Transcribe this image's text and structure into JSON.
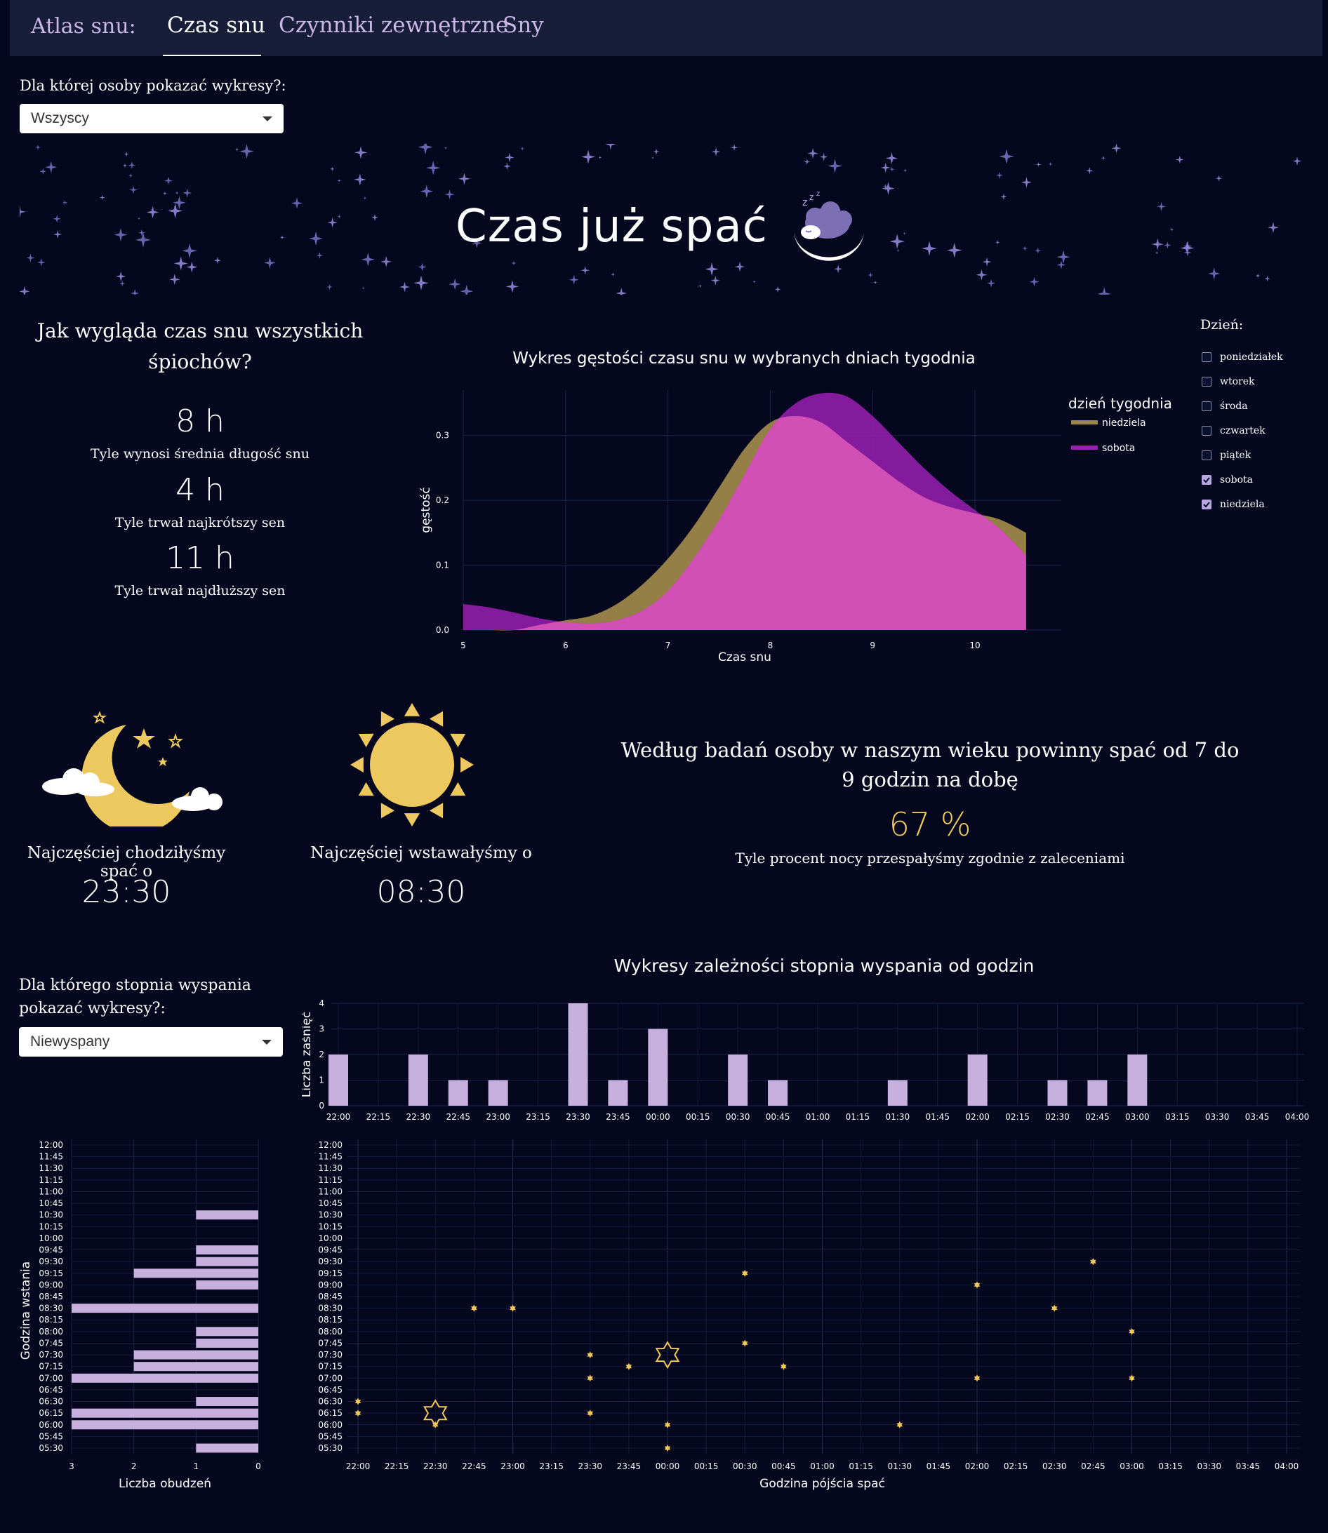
{
  "nav": {
    "brand": "Atlas snu:",
    "tabs": [
      {
        "label": "Czas snu",
        "active": true
      },
      {
        "label": "Czynniki zewnętrzne",
        "active": false
      },
      {
        "label": "Sny",
        "active": false
      }
    ]
  },
  "person_selector": {
    "label": "Dla której osoby pokazać wykresy?:",
    "value": "Wszyscy"
  },
  "banner": {
    "title": "Czas już spać",
    "icon": "sleeping-sheep-on-moon-icon"
  },
  "stats": {
    "heading": "Jak wygląda czas snu wszystkich śpiochów?",
    "avg_value": "8 h",
    "avg_caption": "Tyle wynosi średnia długość snu",
    "min_value": "4 h",
    "min_caption": "Tyle trwał najkrótszy sen",
    "max_value": "11 h",
    "max_caption": "Tyle trwał najdłuższy sen"
  },
  "day_filter": {
    "label": "Dzień:",
    "options": [
      {
        "label": "poniedziałek",
        "checked": false
      },
      {
        "label": "wtorek",
        "checked": false
      },
      {
        "label": "środa",
        "checked": false
      },
      {
        "label": "czwartek",
        "checked": false
      },
      {
        "label": "piątek",
        "checked": false
      },
      {
        "label": "sobota",
        "checked": true
      },
      {
        "label": "niedziela",
        "checked": true
      }
    ]
  },
  "bed_time": {
    "caption": "Najczęściej chodziłyśmy spać o",
    "value": "23:30",
    "icon": "moon-with-clouds-icon"
  },
  "wake_time": {
    "caption": "Najczęściej wstawałyśmy o",
    "value": "08:30",
    "icon": "sun-icon"
  },
  "recommendation": {
    "text": "Według badań osoby w naszym wieku powinny spać od 7 do 9 godzin na dobę",
    "percent": "67 %",
    "caption": "Tyle procent nocy przespałyśmy zgodnie z zaleceniami"
  },
  "rested_selector": {
    "label": "Dla którego stopnia wyspania pokazać wykresy?:",
    "value": "Niewyspany"
  },
  "colors": {
    "background": "#04071e",
    "nav": "#181d3a",
    "accent": "#c9b7e6",
    "niedziela": "#9c8749",
    "sobota": "#9b1fb3",
    "overlap": "#d24fb6",
    "bar": "#c7b0de",
    "marker": "#f2c85b"
  },
  "chart_data": [
    {
      "type": "area",
      "title": "Wykres gęstości czasu snu w wybranych dniach tygodnia",
      "xlabel": "Czas snu",
      "ylabel": "gęstość",
      "xlim": [
        5,
        10.5
      ],
      "ylim": [
        0,
        0.37
      ],
      "xticks": [
        "5",
        "6",
        "7",
        "8",
        "9",
        "10"
      ],
      "yticks": [
        "0.0",
        "0.1",
        "0.2",
        "0.3"
      ],
      "legend_title": "dzień tygodnia",
      "legend_position": "top-right",
      "x": [
        5,
        5.25,
        5.5,
        5.75,
        6,
        6.25,
        6.5,
        6.75,
        7,
        7.25,
        7.5,
        7.75,
        8,
        8.25,
        8.5,
        8.75,
        9,
        9.25,
        9.5,
        9.75,
        10,
        10.25,
        10.5
      ],
      "series": [
        {
          "name": "niedziela",
          "values": [
            0.0,
            0.0,
            0.0,
            0.008,
            0.015,
            0.022,
            0.04,
            0.07,
            0.11,
            0.16,
            0.22,
            0.28,
            0.32,
            0.33,
            0.32,
            0.29,
            0.26,
            0.23,
            0.205,
            0.19,
            0.18,
            0.17,
            0.15
          ]
        },
        {
          "name": "sobota",
          "values": [
            0.04,
            0.035,
            0.027,
            0.018,
            0.012,
            0.01,
            0.015,
            0.03,
            0.06,
            0.11,
            0.17,
            0.24,
            0.31,
            0.35,
            0.365,
            0.36,
            0.33,
            0.29,
            0.25,
            0.215,
            0.185,
            0.155,
            0.115
          ]
        }
      ]
    },
    {
      "type": "bar",
      "title": "Wykresy zależności stopnia wyspania od godzin",
      "ylabel": "Liczba zaśnięć",
      "ylim": [
        0,
        4
      ],
      "categories": [
        "22:00",
        "22:15",
        "22:30",
        "22:45",
        "23:00",
        "23:15",
        "23:30",
        "23:45",
        "00:00",
        "00:15",
        "00:30",
        "00:45",
        "01:00",
        "01:15",
        "01:30",
        "01:45",
        "02:00",
        "02:15",
        "02:30",
        "02:45",
        "03:00",
        "03:15",
        "03:30",
        "03:45",
        "04:00"
      ],
      "values": [
        2,
        0,
        2,
        1,
        1,
        0,
        4,
        1,
        3,
        0,
        2,
        1,
        0,
        0,
        1,
        0,
        2,
        0,
        1,
        1,
        2,
        0,
        0,
        0,
        0
      ]
    },
    {
      "type": "bar",
      "orientation": "horizontal",
      "xlabel": "Liczba obudzeń",
      "ylabel": "Godzina wstania",
      "xlim": [
        3,
        0
      ],
      "xticks": [
        "3",
        "2",
        "1",
        "0"
      ],
      "categories": [
        "05:30",
        "05:45",
        "06:00",
        "06:15",
        "06:30",
        "06:45",
        "07:00",
        "07:15",
        "07:30",
        "07:45",
        "08:00",
        "08:15",
        "08:30",
        "08:45",
        "09:00",
        "09:15",
        "09:30",
        "09:45",
        "10:00",
        "10:15",
        "10:30",
        "10:45",
        "11:00",
        "11:15",
        "11:30",
        "11:45",
        "12:00"
      ],
      "values": [
        1,
        0,
        3,
        3,
        1,
        0,
        3,
        2,
        2,
        1,
        1,
        0,
        3,
        0,
        1,
        2,
        1,
        1,
        0,
        0,
        1,
        0,
        0,
        0,
        0,
        0,
        0
      ]
    },
    {
      "type": "scatter",
      "xlabel": "Godzina pójścia spać",
      "ylabel": "Godzina wstania",
      "x_categories": [
        "22:00",
        "22:15",
        "22:30",
        "22:45",
        "23:00",
        "23:15",
        "23:30",
        "23:45",
        "00:00",
        "00:15",
        "00:30",
        "00:45",
        "01:00",
        "01:15",
        "01:30",
        "01:45",
        "02:00",
        "02:15",
        "02:30",
        "02:45",
        "03:00",
        "03:15",
        "03:30",
        "03:45",
        "04:00"
      ],
      "y_categories": [
        "05:30",
        "05:45",
        "06:00",
        "06:15",
        "06:30",
        "06:45",
        "07:00",
        "07:15",
        "07:30",
        "07:45",
        "08:00",
        "08:15",
        "08:30",
        "08:45",
        "09:00",
        "09:15",
        "09:30",
        "09:45",
        "10:00",
        "10:15",
        "10:30",
        "10:45",
        "11:00",
        "11:15",
        "11:30",
        "11:45",
        "12:00"
      ],
      "points": [
        {
          "x": "22:00",
          "y": "06:30",
          "size": 1
        },
        {
          "x": "22:00",
          "y": "06:15",
          "size": 1
        },
        {
          "x": "22:30",
          "y": "06:15",
          "size": 3
        },
        {
          "x": "22:30",
          "y": "06:00",
          "size": 1
        },
        {
          "x": "22:45",
          "y": "08:30",
          "size": 1
        },
        {
          "x": "23:00",
          "y": "08:30",
          "size": 1
        },
        {
          "x": "23:30",
          "y": "07:30",
          "size": 1
        },
        {
          "x": "23:30",
          "y": "07:00",
          "size": 1
        },
        {
          "x": "23:30",
          "y": "06:15",
          "size": 1
        },
        {
          "x": "23:45",
          "y": "07:15",
          "size": 1
        },
        {
          "x": "00:00",
          "y": "07:30",
          "size": 3
        },
        {
          "x": "00:00",
          "y": "06:00",
          "size": 1
        },
        {
          "x": "00:00",
          "y": "05:30",
          "size": 1
        },
        {
          "x": "00:30",
          "y": "09:15",
          "size": 1
        },
        {
          "x": "00:30",
          "y": "07:45",
          "size": 1
        },
        {
          "x": "00:45",
          "y": "07:15",
          "size": 1
        },
        {
          "x": "01:30",
          "y": "06:00",
          "size": 1
        },
        {
          "x": "02:00",
          "y": "09:00",
          "size": 1
        },
        {
          "x": "02:00",
          "y": "07:00",
          "size": 1
        },
        {
          "x": "02:30",
          "y": "08:30",
          "size": 1
        },
        {
          "x": "02:45",
          "y": "09:30",
          "size": 1
        },
        {
          "x": "03:00",
          "y": "08:00",
          "size": 1
        },
        {
          "x": "03:00",
          "y": "07:00",
          "size": 1
        }
      ]
    }
  ]
}
